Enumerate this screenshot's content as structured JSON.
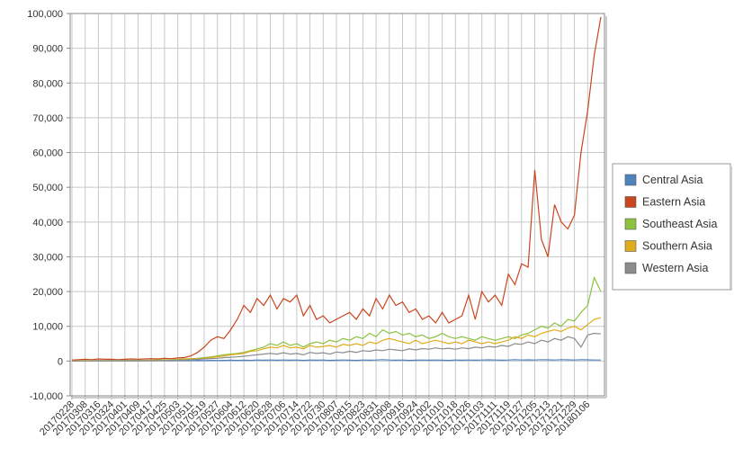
{
  "chart_data": {
    "type": "line",
    "categories": [
      "20170228",
      null,
      "20170308",
      null,
      "20170316",
      null,
      "20170324",
      null,
      "20170401",
      null,
      "20170409",
      null,
      "20170417",
      null,
      "20170425",
      null,
      "20170503",
      null,
      "20170511",
      null,
      "20170519",
      null,
      "20170527",
      null,
      "20170604",
      null,
      "20170612",
      null,
      "20170620",
      null,
      "20170628",
      null,
      "20170706",
      null,
      "20170714",
      null,
      "20170722",
      null,
      "20170730",
      null,
      "20170807",
      null,
      "20170815",
      null,
      "20170823",
      null,
      "20170831",
      null,
      "20170908",
      null,
      "20170916",
      null,
      "20170924",
      null,
      "20171002",
      null,
      "20171010",
      null,
      "20171018",
      null,
      "20171026",
      null,
      "20171103",
      null,
      "20171111",
      null,
      "20171119",
      null,
      "20171127",
      null,
      "20171205",
      null,
      "20171213",
      null,
      "20171221",
      null,
      "20171229",
      null,
      "20180106",
      null,
      null
    ],
    "series": [
      {
        "name": "Central Asia",
        "color": "#4f81bd",
        "values": [
          50,
          50,
          50,
          80,
          50,
          80,
          50,
          100,
          80,
          100,
          80,
          100,
          120,
          100,
          150,
          100,
          150,
          120,
          150,
          200,
          150,
          200,
          180,
          200,
          250,
          200,
          250,
          200,
          300,
          250,
          300,
          250,
          300,
          250,
          300,
          200,
          300,
          250,
          300,
          200,
          250,
          300,
          250,
          200,
          300,
          250,
          300,
          400,
          300,
          250,
          300,
          200,
          250,
          300,
          250,
          300,
          250,
          200,
          300,
          250,
          300,
          250,
          300,
          350,
          300,
          250,
          300,
          400,
          300,
          350,
          300,
          400,
          350,
          300,
          400,
          350,
          300,
          400,
          350,
          300,
          300
        ]
      },
      {
        "name": "Eastern Asia",
        "color": "#c9461f",
        "values": [
          300,
          400,
          500,
          400,
          600,
          500,
          500,
          400,
          500,
          600,
          500,
          600,
          700,
          600,
          800,
          700,
          900,
          1000,
          1500,
          2500,
          4000,
          6000,
          7000,
          6500,
          9000,
          12000,
          16000,
          14000,
          18000,
          16000,
          19000,
          15000,
          18000,
          17000,
          19000,
          13000,
          16000,
          12000,
          13000,
          11000,
          12000,
          13000,
          14000,
          12000,
          15000,
          13000,
          18000,
          15000,
          19000,
          16000,
          17000,
          14000,
          15000,
          12000,
          13000,
          11000,
          14000,
          11000,
          12000,
          13000,
          19000,
          12000,
          20000,
          17000,
          19000,
          16000,
          25000,
          22000,
          28000,
          27000,
          55000,
          35000,
          30000,
          45000,
          40000,
          38000,
          42000,
          60000,
          72000,
          88000,
          99000
        ]
      },
      {
        "name": "Southeast Asia",
        "color": "#8cc23f",
        "values": [
          100,
          100,
          150,
          100,
          200,
          150,
          200,
          150,
          200,
          200,
          250,
          200,
          300,
          300,
          400,
          400,
          500,
          600,
          700,
          800,
          1000,
          1200,
          1500,
          1800,
          2000,
          2200,
          2500,
          3000,
          3500,
          4000,
          5000,
          4500,
          5500,
          4500,
          5000,
          4000,
          5000,
          5500,
          5000,
          6000,
          5500,
          6500,
          6000,
          7000,
          6500,
          8000,
          7000,
          9000,
          8000,
          8500,
          7500,
          8000,
          7000,
          7500,
          6500,
          7000,
          8000,
          7000,
          6500,
          7000,
          6500,
          6000,
          7000,
          6500,
          6000,
          6500,
          7000,
          6500,
          7500,
          8000,
          9000,
          10000,
          9500,
          11000,
          10000,
          12000,
          11500,
          14000,
          16000,
          24000,
          20000
        ]
      },
      {
        "name": "Southern Asia",
        "color": "#e0ac1b",
        "values": [
          50,
          80,
          100,
          80,
          150,
          100,
          150,
          120,
          150,
          150,
          200,
          200,
          250,
          250,
          300,
          300,
          400,
          500,
          600,
          700,
          800,
          1000,
          1200,
          1500,
          1800,
          2000,
          2200,
          2800,
          3000,
          3500,
          4000,
          3800,
          4500,
          3800,
          4000,
          3500,
          4500,
          4000,
          4200,
          4500,
          4000,
          4800,
          4500,
          5000,
          4500,
          5500,
          5000,
          6000,
          6500,
          6000,
          5500,
          5000,
          6000,
          5000,
          5500,
          6000,
          5500,
          5000,
          5500,
          5000,
          6000,
          5500,
          5000,
          5500,
          5000,
          5500,
          6000,
          7000,
          6500,
          7500,
          7000,
          8000,
          8500,
          9000,
          8500,
          9500,
          10000,
          9000,
          10500,
          12000,
          12500
        ]
      },
      {
        "name": "Western Asia",
        "color": "#8c8c8c",
        "values": [
          0,
          50,
          50,
          50,
          100,
          80,
          100,
          80,
          100,
          100,
          120,
          100,
          150,
          150,
          200,
          200,
          250,
          300,
          400,
          500,
          600,
          700,
          800,
          1000,
          1100,
          1200,
          1400,
          1600,
          1800,
          2000,
          2200,
          2000,
          2400,
          2000,
          2200,
          1800,
          2500,
          2200,
          2400,
          2000,
          2600,
          2400,
          2800,
          2500,
          3000,
          2800,
          3200,
          3000,
          3400,
          3200,
          3000,
          3500,
          3200,
          3600,
          3400,
          3800,
          3500,
          3700,
          3400,
          3800,
          3600,
          4000,
          3800,
          4200,
          4000,
          4500,
          4200,
          5000,
          4800,
          5500,
          5000,
          6000,
          5500,
          6500,
          6000,
          7000,
          6500,
          4000,
          7500,
          8000,
          7800
        ]
      }
    ],
    "ylim": [
      -10000,
      100000
    ],
    "yticks": [
      {
        "value": -10000,
        "label": "-10,000"
      },
      0,
      {
        "value": 10000,
        "label": "10,000"
      },
      {
        "value": 20000,
        "label": "20,000"
      },
      {
        "value": 30000,
        "label": "30,000"
      },
      {
        "value": 40000,
        "label": "40,000"
      },
      {
        "value": 50000,
        "label": "50,000"
      },
      {
        "value": 60000,
        "label": "60,000"
      },
      {
        "value": 70000,
        "label": "70,000"
      },
      {
        "value": 80000,
        "label": "80,000"
      },
      {
        "value": 90000,
        "label": "90,000"
      },
      {
        "value": 100000,
        "label": "100,000"
      }
    ],
    "grid": true,
    "legend": "right"
  }
}
